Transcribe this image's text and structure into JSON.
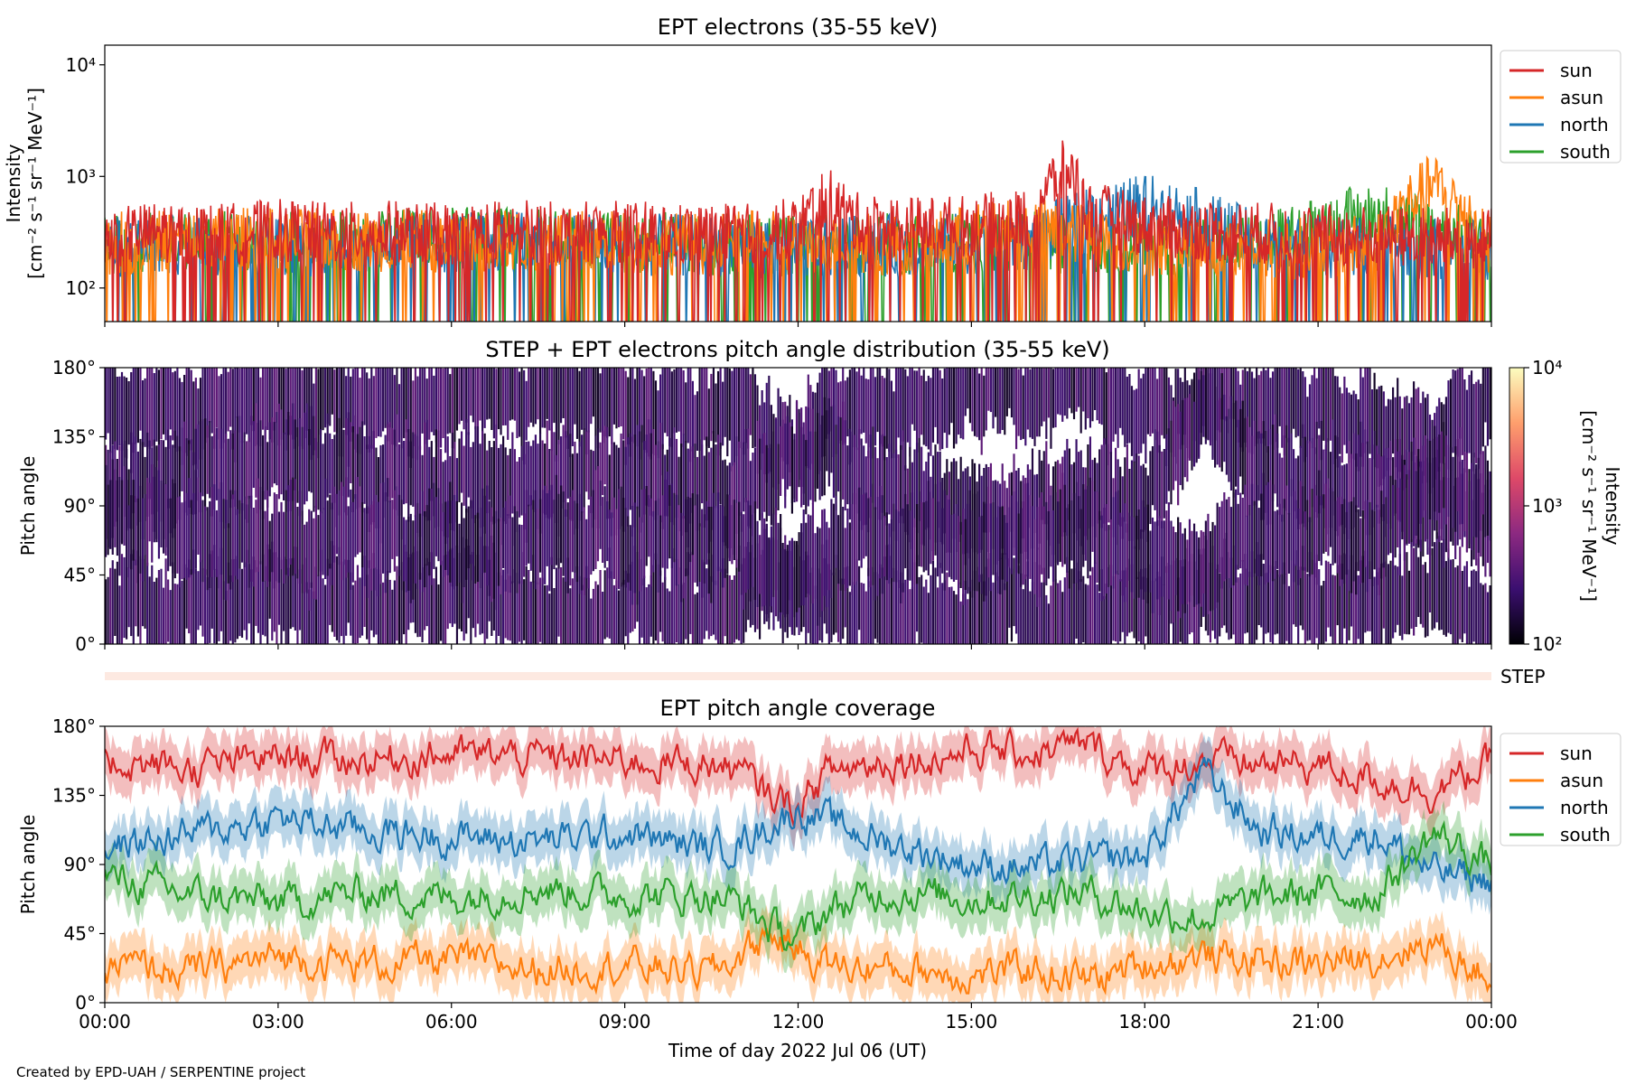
{
  "footer": {
    "credit": "Created by EPD-UAH / SERPENTINE project"
  },
  "colors": {
    "sun": "#d62728",
    "asun": "#ff7f0e",
    "north": "#1f77b4",
    "south": "#2ca02c",
    "colormap": [
      "#000004",
      "#3b0f70",
      "#8c2981",
      "#de4968",
      "#fe9f6d",
      "#fcfdbf"
    ]
  },
  "chart_data": [
    {
      "type": "line",
      "title": "EPT electrons (35-55 keV)",
      "ylabel": "Intensity",
      "yunit": "[cm⁻² s⁻¹ sr⁻¹ MeV⁻¹]",
      "yscale": "log",
      "ylim": [
        50,
        15000
      ],
      "yticks": [
        {
          "value": 100,
          "label": "10²"
        },
        {
          "value": 1000,
          "label": "10³"
        },
        {
          "value": 10000,
          "label": "10⁴"
        }
      ],
      "xlim": [
        "2022-07-06 00:00",
        "2022-07-07 00:00"
      ],
      "legend": "outside-right",
      "series": [
        {
          "name": "sun",
          "color": "#d62728",
          "x": [
            "00:00",
            "01:00",
            "02:00",
            "03:00",
            "04:00",
            "05:00",
            "06:00",
            "07:00",
            "08:00",
            "09:00",
            "10:00",
            "11:00",
            "12:00",
            "12:30",
            "13:00",
            "14:00",
            "15:00",
            "16:00",
            "16:40",
            "17:00",
            "18:00",
            "19:00",
            "20:00",
            "21:00",
            "22:00",
            "23:00",
            "23:59"
          ],
          "values": [
            280,
            320,
            300,
            330,
            310,
            320,
            300,
            330,
            310,
            320,
            300,
            300,
            340,
            650,
            380,
            350,
            360,
            420,
            1200,
            480,
            360,
            330,
            310,
            300,
            290,
            280,
            270
          ]
        },
        {
          "name": "asun",
          "color": "#ff7f0e",
          "x": [
            "00:00",
            "02:00",
            "04:00",
            "06:00",
            "08:00",
            "10:00",
            "12:00",
            "14:00",
            "16:00",
            "18:00",
            "20:00",
            "22:00",
            "23:00",
            "23:59"
          ],
          "values": [
            250,
            280,
            270,
            260,
            270,
            250,
            260,
            240,
            350,
            240,
            220,
            240,
            850,
            230
          ]
        },
        {
          "name": "north",
          "color": "#1f77b4",
          "x": [
            "00:00",
            "02:00",
            "04:00",
            "06:00",
            "08:00",
            "10:00",
            "12:00",
            "14:00",
            "16:00",
            "18:00",
            "20:00",
            "22:00",
            "23:59"
          ],
          "values": [
            230,
            250,
            240,
            260,
            250,
            240,
            230,
            240,
            260,
            560,
            240,
            230,
            220
          ]
        },
        {
          "name": "south",
          "color": "#2ca02c",
          "x": [
            "00:00",
            "02:00",
            "04:00",
            "06:00",
            "08:00",
            "10:00",
            "12:00",
            "14:00",
            "16:00",
            "18:00",
            "20:00",
            "22:00",
            "23:59"
          ],
          "values": [
            240,
            270,
            250,
            280,
            260,
            250,
            240,
            250,
            260,
            250,
            240,
            470,
            230
          ]
        }
      ]
    },
    {
      "type": "heatmap",
      "title": "STEP + EPT electrons pitch angle distribution (35-55 keV)",
      "ylabel": "Pitch angle",
      "ylim": [
        0,
        180
      ],
      "yticks": [
        "0°",
        "45°",
        "90°",
        "135°",
        "180°"
      ],
      "colorbar": {
        "label": "Intensity",
        "unit": "[cm⁻² s⁻¹ sr⁻¹ MeV⁻¹]",
        "scale": "log",
        "range": [
          100,
          10000
        ],
        "ticks": [
          {
            "value": 100,
            "label": "10²"
          },
          {
            "value": 1000,
            "label": "10³"
          },
          {
            "value": 10000,
            "label": "10⁴"
          }
        ]
      },
      "typical_intensity": 200,
      "step_label": "STEP"
    },
    {
      "type": "line",
      "title": "EPT pitch angle coverage",
      "ylabel": "Pitch angle",
      "ylim": [
        0,
        180
      ],
      "yticks": [
        "0°",
        "45°",
        "90°",
        "135°",
        "180°"
      ],
      "xlabel": "Time of day 2022 Jul 06 (UT)",
      "xticks": [
        "00:00",
        "03:00",
        "06:00",
        "09:00",
        "12:00",
        "15:00",
        "18:00",
        "21:00",
        "00:00"
      ],
      "legend": "outside-right",
      "band_halfwidth": 15,
      "series": [
        {
          "name": "sun",
          "color": "#d62728",
          "x": [
            "00:00",
            "01:30",
            "03:00",
            "04:30",
            "06:00",
            "07:30",
            "09:00",
            "10:30",
            "11:00",
            "11:30",
            "12:00",
            "12:30",
            "13:30",
            "14:30",
            "15:00",
            "16:00",
            "17:00",
            "18:00",
            "19:00",
            "20:00",
            "21:00",
            "22:00",
            "23:00",
            "23:59"
          ],
          "values": [
            158,
            152,
            160,
            158,
            162,
            160,
            158,
            155,
            150,
            135,
            128,
            150,
            158,
            160,
            165,
            162,
            168,
            150,
            158,
            155,
            155,
            145,
            138,
            155
          ]
        },
        {
          "name": "asun",
          "color": "#ff7f0e",
          "x": [
            "00:00",
            "01:30",
            "03:00",
            "04:30",
            "06:00",
            "07:30",
            "09:00",
            "10:30",
            "11:00",
            "11:30",
            "12:00",
            "12:30",
            "13:30",
            "14:30",
            "15:00",
            "16:00",
            "17:00",
            "18:00",
            "19:00",
            "20:00",
            "21:00",
            "22:00",
            "23:00",
            "23:59"
          ],
          "values": [
            25,
            20,
            30,
            25,
            28,
            22,
            25,
            20,
            30,
            45,
            35,
            25,
            22,
            20,
            18,
            22,
            15,
            25,
            30,
            28,
            25,
            30,
            40,
            15
          ]
        },
        {
          "name": "north",
          "color": "#1f77b4",
          "x": [
            "00:00",
            "01:30",
            "03:00",
            "04:30",
            "06:00",
            "07:30",
            "09:00",
            "10:30",
            "11:00",
            "11:30",
            "12:00",
            "12:30",
            "13:30",
            "14:30",
            "15:00",
            "16:00",
            "17:00",
            "18:00",
            "19:00",
            "20:00",
            "21:00",
            "22:00",
            "23:00",
            "23:59"
          ],
          "values": [
            100,
            110,
            120,
            112,
            108,
            105,
            110,
            100,
            105,
            115,
            125,
            118,
            105,
            95,
            90,
            88,
            92,
            95,
            150,
            112,
            108,
            110,
            85,
            80
          ]
        },
        {
          "name": "south",
          "color": "#2ca02c",
          "x": [
            "00:00",
            "01:30",
            "03:00",
            "04:30",
            "06:00",
            "07:30",
            "09:00",
            "10:30",
            "11:00",
            "11:30",
            "12:00",
            "12:30",
            "13:30",
            "14:30",
            "15:00",
            "16:00",
            "17:00",
            "18:00",
            "19:00",
            "20:00",
            "21:00",
            "22:00",
            "23:00",
            "23:59"
          ],
          "values": [
            82,
            70,
            65,
            72,
            68,
            75,
            70,
            70,
            65,
            50,
            40,
            60,
            72,
            70,
            68,
            70,
            72,
            60,
            55,
            68,
            72,
            70,
            110,
            90
          ]
        }
      ]
    }
  ]
}
